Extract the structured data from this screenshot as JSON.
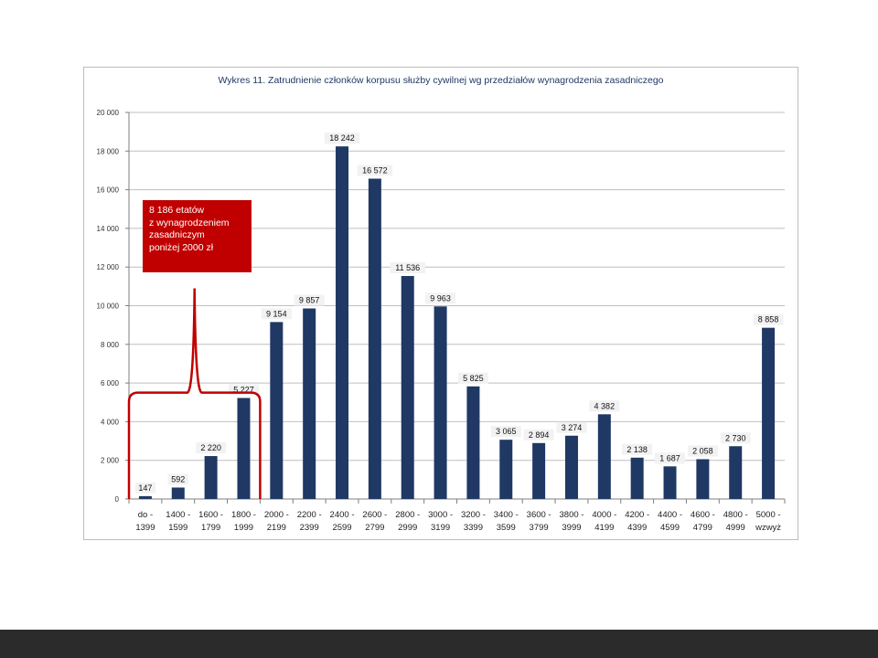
{
  "chart_data": {
    "type": "bar",
    "title": "Wykres 11. Zatrudnienie członków korpusu służby cywilnej wg przedziałów wynagrodzenia zasadniczego",
    "xlabel": "",
    "ylabel": "",
    "ylim": [
      0,
      20000
    ],
    "yticks": [
      "0",
      "2 000",
      "4 000",
      "6 000",
      "8 000",
      "10 000",
      "12 000",
      "14 000",
      "16 000",
      "18 000",
      "20 000"
    ],
    "grid": true,
    "legend": "none",
    "categories": [
      [
        "do -",
        "1399"
      ],
      [
        "1400 -",
        "1599"
      ],
      [
        "1600 -",
        "1799"
      ],
      [
        "1800 -",
        "1999"
      ],
      [
        "2000 -",
        "2199"
      ],
      [
        "2200 -",
        "2399"
      ],
      [
        "2400 -",
        "2599"
      ],
      [
        "2600 -",
        "2799"
      ],
      [
        "2800 -",
        "2999"
      ],
      [
        "3000 -",
        "3199"
      ],
      [
        "3200 -",
        "3399"
      ],
      [
        "3400 -",
        "3599"
      ],
      [
        "3600 -",
        "3799"
      ],
      [
        "3800 -",
        "3999"
      ],
      [
        "4000 -",
        "4199"
      ],
      [
        "4200 -",
        "4399"
      ],
      [
        "4400 -",
        "4599"
      ],
      [
        "4600 -",
        "4799"
      ],
      [
        "4800 -",
        "4999"
      ],
      [
        "5000 -",
        "wzwyż"
      ]
    ],
    "values": [
      147,
      592,
      2220,
      5227,
      9154,
      9857,
      18242,
      16572,
      11536,
      9963,
      5825,
      3065,
      2894,
      3274,
      4382,
      2138,
      1687,
      2058,
      2730,
      8858
    ],
    "value_labels": [
      "147",
      "592",
      "2 220",
      "5 227",
      "9 154",
      "9 857",
      "18 242",
      "16 572",
      "11 536",
      "9 963",
      "5 825",
      "3 065",
      "2 894",
      "3 274",
      "4 382",
      "2 138",
      "1 687",
      "2 058",
      "2 730",
      "8 858"
    ],
    "annotation": {
      "lines": [
        "8 186 etatów",
        "z wynagrodzeniem",
        "zasadniczym",
        "poniżej 2000 zł"
      ],
      "brace_from_category": 0,
      "brace_to_category": 3
    },
    "colors": {
      "bar": "#1f3864",
      "annotation": "#c00000",
      "grid": "#bfbfbf",
      "title": "#1f3864"
    }
  }
}
